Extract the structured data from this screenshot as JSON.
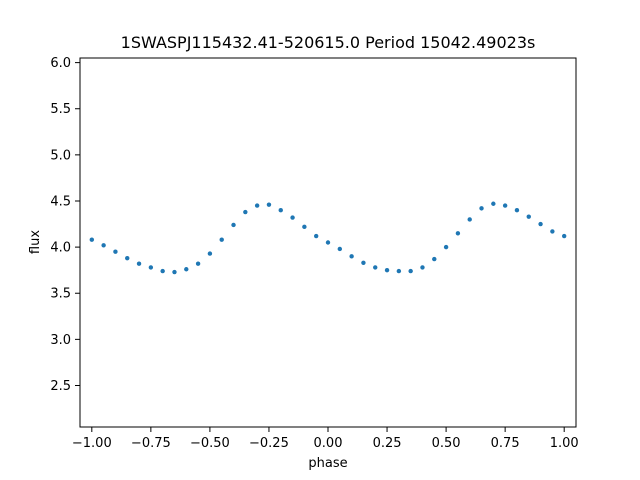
{
  "chart_data": {
    "type": "scatter",
    "title": "1SWASPJ115432.41-520615.0 Period 15042.49023s",
    "xlabel": "phase",
    "ylabel": "flux",
    "xlim": [
      -1.05,
      1.05
    ],
    "ylim": [
      2.05,
      6.05
    ],
    "x_ticks": [
      -1.0,
      -0.75,
      -0.5,
      -0.25,
      0.0,
      0.25,
      0.5,
      0.75,
      1.0
    ],
    "x_tick_labels": [
      "−1.00",
      "−0.75",
      "−0.50",
      "−0.25",
      "0.00",
      "0.25",
      "0.50",
      "0.75",
      "1.00"
    ],
    "y_ticks": [
      2.5,
      3.0,
      3.5,
      4.0,
      4.5,
      5.0,
      5.5,
      6.0
    ],
    "y_tick_labels": [
      "2.5",
      "3.0",
      "3.5",
      "4.0",
      "4.5",
      "5.0",
      "5.5",
      "6.0"
    ],
    "grid": false,
    "point_color": "#1f77b4",
    "series": [
      {
        "x": [
          -1.0,
          -0.95,
          -0.9,
          -0.85,
          -0.8,
          -0.75,
          -0.7,
          -0.65,
          -0.6,
          -0.55,
          -0.5,
          -0.45,
          -0.4,
          -0.35,
          -0.3,
          -0.25,
          -0.2,
          -0.15,
          -0.1,
          -0.05,
          0.0,
          0.05,
          0.1,
          0.15,
          0.2,
          0.25,
          0.3,
          0.35,
          0.4,
          0.45,
          0.5,
          0.55,
          0.6,
          0.65,
          0.7,
          0.75,
          0.8,
          0.85,
          0.9,
          0.95,
          1.0
        ],
        "y": [
          4.08,
          4.02,
          3.95,
          3.88,
          3.82,
          3.78,
          3.74,
          3.73,
          3.76,
          3.82,
          3.93,
          4.08,
          4.24,
          4.38,
          4.45,
          4.46,
          4.4,
          4.32,
          4.22,
          4.12,
          4.05,
          3.98,
          3.9,
          3.83,
          3.78,
          3.75,
          3.74,
          3.74,
          3.78,
          3.87,
          4.0,
          4.15,
          4.3,
          4.42,
          4.47,
          4.45,
          4.4,
          4.33,
          4.25,
          4.17,
          4.12
        ]
      }
    ]
  }
}
